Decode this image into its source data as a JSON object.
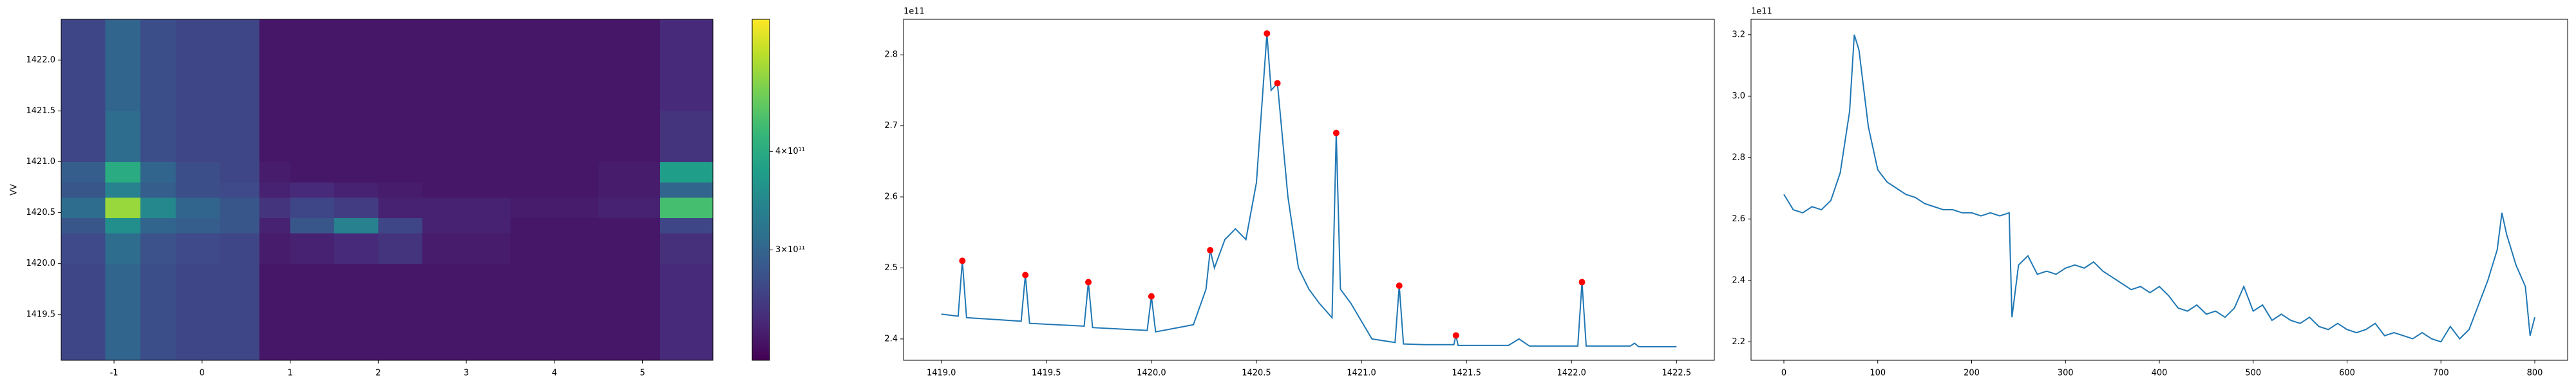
{
  "chart_data": [
    {
      "type": "heatmap",
      "ylabel": "VV",
      "colormap": "viridis",
      "xlim": [
        -1.6,
        5.8
      ],
      "ylim": [
        1419.05,
        1422.4
      ],
      "xticks": [
        -1,
        0,
        1,
        2,
        3,
        4,
        5
      ],
      "yticks": [
        {
          "value": 1419.5,
          "label": "1419.5"
        },
        {
          "value": 1420,
          "label": "1420.0"
        },
        {
          "value": 1420.5,
          "label": "1420.5"
        },
        {
          "value": 1421,
          "label": "1421.0"
        },
        {
          "value": 1421.5,
          "label": "1421.5"
        },
        {
          "value": 1422,
          "label": "1422.0"
        }
      ],
      "x_edges": [
        -1.6,
        -1.1,
        -0.7,
        -0.3,
        0.2,
        0.65,
        1.0,
        1.5,
        2.0,
        2.5,
        3.5,
        4.5,
        5.2,
        5.8
      ],
      "y_edges": [
        1419.05,
        1419.5,
        1420.0,
        1420.3,
        1420.45,
        1420.65,
        1420.8,
        1421.0,
        1421.5,
        1422.4
      ],
      "z": [
        [
          260000000000.0,
          300000000000.0,
          270000000000.0,
          260000000000.0,
          260000000000.0,
          210000000000.0,
          210000000000.0,
          210000000000.0,
          210000000000.0,
          210000000000.0,
          210000000000.0,
          210000000000.0,
          230000000000.0
        ],
        [
          260000000000.0,
          300000000000.0,
          270000000000.0,
          260000000000.0,
          260000000000.0,
          210000000000.0,
          210000000000.0,
          210000000000.0,
          210000000000.0,
          210000000000.0,
          210000000000.0,
          210000000000.0,
          230000000000.0
        ],
        [
          265000000000.0,
          310000000000.0,
          275000000000.0,
          265000000000.0,
          260000000000.0,
          215000000000.0,
          220000000000.0,
          230000000000.0,
          240000000000.0,
          215000000000.0,
          210000000000.0,
          210000000000.0,
          235000000000.0
        ],
        [
          280000000000.0,
          360000000000.0,
          300000000000.0,
          290000000000.0,
          280000000000.0,
          220000000000.0,
          280000000000.0,
          340000000000.0,
          260000000000.0,
          220000000000.0,
          210000000000.0,
          210000000000.0,
          260000000000.0
        ],
        [
          310000000000.0,
          480000000000.0,
          350000000000.0,
          300000000000.0,
          280000000000.0,
          240000000000.0,
          260000000000.0,
          250000000000.0,
          220000000000.0,
          220000000000.0,
          215000000000.0,
          220000000000.0,
          430000000000.0
        ],
        [
          280000000000.0,
          340000000000.0,
          290000000000.0,
          270000000000.0,
          265000000000.0,
          220000000000.0,
          230000000000.0,
          220000000000.0,
          215000000000.0,
          210000000000.0,
          210000000000.0,
          215000000000.0,
          300000000000.0
        ],
        [
          290000000000.0,
          400000000000.0,
          300000000000.0,
          270000000000.0,
          260000000000.0,
          215000000000.0,
          210000000000.0,
          210000000000.0,
          210000000000.0,
          210000000000.0,
          210000000000.0,
          215000000000.0,
          380000000000.0
        ],
        [
          260000000000.0,
          310000000000.0,
          270000000000.0,
          260000000000.0,
          260000000000.0,
          210000000000.0,
          210000000000.0,
          210000000000.0,
          210000000000.0,
          210000000000.0,
          210000000000.0,
          210000000000.0,
          240000000000.0
        ],
        [
          260000000000.0,
          300000000000.0,
          270000000000.0,
          260000000000.0,
          260000000000.0,
          210000000000.0,
          210000000000.0,
          210000000000.0,
          210000000000.0,
          210000000000.0,
          210000000000.0,
          210000000000.0,
          230000000000.0
        ]
      ],
      "clim": [
        188000000000.0,
        534000000000.0
      ],
      "cticks": [
        {
          "value": 300000000000.0,
          "label": "3×10¹¹"
        },
        {
          "value": 400000000000.0,
          "label": "4×10¹¹"
        }
      ]
    },
    {
      "type": "line",
      "offset_text": "1e11",
      "xlim": [
        1418.82,
        1422.68
      ],
      "ylim": [
        2.37,
        2.85
      ],
      "xticks": [
        {
          "value": 1419,
          "label": "1419.0"
        },
        {
          "value": 1419.5,
          "label": "1419.5"
        },
        {
          "value": 1420,
          "label": "1420.0"
        },
        {
          "value": 1420.5,
          "label": "1420.5"
        },
        {
          "value": 1421,
          "label": "1421.0"
        },
        {
          "value": 1421.5,
          "label": "1421.5"
        },
        {
          "value": 1422,
          "label": "1422.0"
        },
        {
          "value": 1422.5,
          "label": "1422.5"
        }
      ],
      "yticks": [
        2.4,
        2.5,
        2.6,
        2.7,
        2.8
      ],
      "series": [
        {
          "color": "#1f77b4",
          "x": [
            1419.0,
            1419.08,
            1419.1,
            1419.12,
            1419.38,
            1419.4,
            1419.42,
            1419.68,
            1419.7,
            1419.72,
            1419.98,
            1420.0,
            1420.02,
            1420.2,
            1420.26,
            1420.28,
            1420.3,
            1420.35,
            1420.4,
            1420.45,
            1420.5,
            1420.55,
            1420.57,
            1420.6,
            1420.65,
            1420.7,
            1420.75,
            1420.8,
            1420.86,
            1420.88,
            1420.9,
            1420.95,
            1421.05,
            1421.16,
            1421.18,
            1421.2,
            1421.3,
            1421.44,
            1421.45,
            1421.46,
            1421.7,
            1421.75,
            1421.8,
            1422.03,
            1422.05,
            1422.07,
            1422.28,
            1422.3,
            1422.32,
            1422.5
          ],
          "values": [
            2.435,
            2.432,
            2.51,
            2.43,
            2.425,
            2.49,
            2.422,
            2.418,
            2.48,
            2.416,
            2.412,
            2.46,
            2.41,
            2.42,
            2.47,
            2.525,
            2.5,
            2.54,
            2.555,
            2.54,
            2.62,
            2.83,
            2.75,
            2.76,
            2.6,
            2.5,
            2.47,
            2.45,
            2.43,
            2.69,
            2.47,
            2.45,
            2.4,
            2.395,
            2.475,
            2.393,
            2.392,
            2.392,
            2.405,
            2.391,
            2.391,
            2.4,
            2.39,
            2.39,
            2.48,
            2.39,
            2.39,
            2.394,
            2.389,
            2.389
          ]
        }
      ],
      "peaks": {
        "color": "red",
        "x": [
          1419.1,
          1419.4,
          1419.7,
          1420.0,
          1420.28,
          1420.55,
          1420.6,
          1420.88,
          1421.18,
          1421.45,
          1422.05
        ],
        "values": [
          2.51,
          2.49,
          2.48,
          2.46,
          2.525,
          2.83,
          2.76,
          2.69,
          2.475,
          2.405,
          2.48
        ]
      }
    },
    {
      "type": "line",
      "offset_text": "1e11",
      "xlim": [
        -35,
        835
      ],
      "ylim": [
        2.14,
        3.25
      ],
      "xticks": [
        0,
        100,
        200,
        300,
        400,
        500,
        600,
        700,
        800
      ],
      "yticks": [
        2.2,
        2.4,
        2.6,
        2.8,
        {
          "value": 3,
          "label": "3.0"
        },
        3.2
      ],
      "series": [
        {
          "color": "#1f77b4",
          "x": [
            0,
            10,
            20,
            30,
            40,
            50,
            60,
            70,
            75,
            80,
            90,
            100,
            110,
            120,
            130,
            140,
            150,
            160,
            170,
            180,
            190,
            200,
            210,
            220,
            230,
            240,
            243,
            250,
            260,
            270,
            280,
            290,
            300,
            310,
            320,
            330,
            340,
            350,
            360,
            370,
            380,
            390,
            400,
            410,
            420,
            430,
            440,
            450,
            460,
            470,
            480,
            490,
            500,
            510,
            520,
            530,
            540,
            550,
            560,
            570,
            580,
            590,
            600,
            610,
            620,
            630,
            640,
            650,
            660,
            670,
            680,
            690,
            700,
            710,
            720,
            730,
            740,
            750,
            760,
            765,
            770,
            780,
            790,
            795,
            800
          ],
          "values": [
            2.68,
            2.63,
            2.62,
            2.64,
            2.63,
            2.66,
            2.75,
            2.95,
            3.2,
            3.15,
            2.9,
            2.76,
            2.72,
            2.7,
            2.68,
            2.67,
            2.65,
            2.64,
            2.63,
            2.63,
            2.62,
            2.62,
            2.61,
            2.62,
            2.61,
            2.62,
            2.28,
            2.45,
            2.48,
            2.42,
            2.43,
            2.42,
            2.44,
            2.45,
            2.44,
            2.46,
            2.43,
            2.41,
            2.39,
            2.37,
            2.38,
            2.36,
            2.38,
            2.35,
            2.31,
            2.3,
            2.32,
            2.29,
            2.3,
            2.28,
            2.31,
            2.38,
            2.3,
            2.32,
            2.27,
            2.29,
            2.27,
            2.26,
            2.28,
            2.25,
            2.24,
            2.26,
            2.24,
            2.23,
            2.24,
            2.26,
            2.22,
            2.23,
            2.22,
            2.21,
            2.23,
            2.21,
            2.2,
            2.25,
            2.21,
            2.24,
            2.32,
            2.4,
            2.5,
            2.62,
            2.55,
            2.45,
            2.38,
            2.22,
            2.28
          ]
        }
      ]
    }
  ]
}
